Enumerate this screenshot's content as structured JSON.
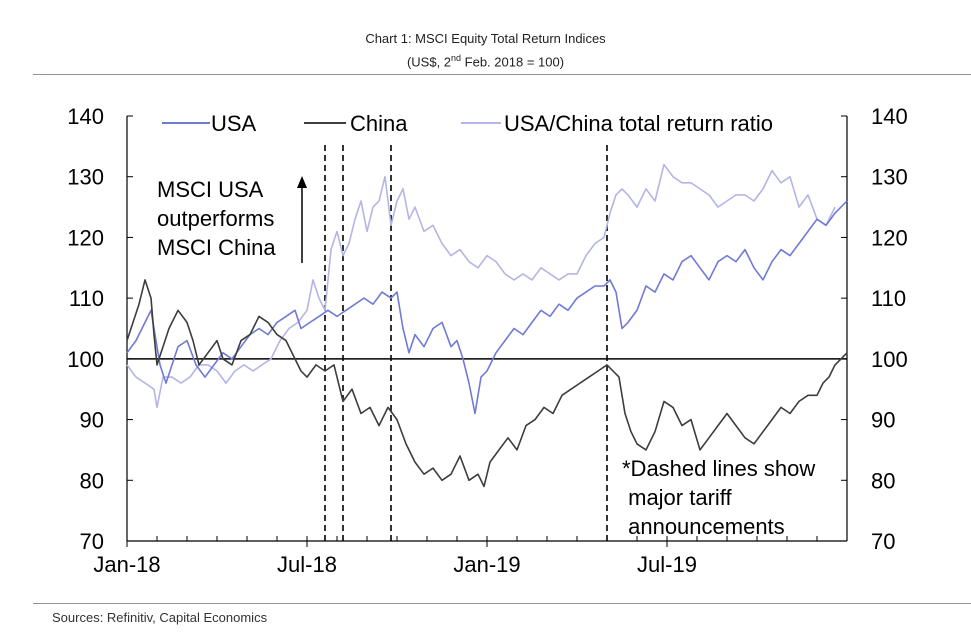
{
  "header": {
    "title": "Chart 1: MSCI Equity Total Return Indices",
    "subtitle_pre": "(US$, 2",
    "subtitle_sup": "nd",
    "subtitle_post": " Feb. 2018 = 100)"
  },
  "footer": {
    "source": "Sources: Refinitiv, Capital Economics"
  },
  "chart_data": {
    "type": "line",
    "title": "Chart 1: MSCI Equity Total Return Indices",
    "subtitle": "(US$, 2nd Feb. 2018 = 100)",
    "x_type": "month_index",
    "x_note": "x = months since 1 Jan 2018 (0 = Jan-18, 24 = Jan-20)",
    "xlim": [
      0,
      24
    ],
    "x_ticks": [
      {
        "x": 0,
        "label": "Jan-18"
      },
      {
        "x": 6,
        "label": "Jul-18"
      },
      {
        "x": 12,
        "label": "Jan-19"
      },
      {
        "x": 18,
        "label": "Jul-19"
      }
    ],
    "ylim": [
      70,
      140
    ],
    "y_ticks": [
      70,
      80,
      90,
      100,
      110,
      120,
      130,
      140
    ],
    "y2lim": [
      70,
      140
    ],
    "y2_ticks": [
      70,
      80,
      90,
      100,
      110,
      120,
      130,
      140
    ],
    "reference_line": 100,
    "grid": false,
    "legend_position": "top",
    "series": [
      {
        "name": "USA",
        "color": "#6f7ad6",
        "points": [
          [
            0,
            101
          ],
          [
            0.3,
            103
          ],
          [
            0.6,
            106
          ],
          [
            0.8,
            108
          ],
          [
            1.0,
            102
          ],
          [
            1.1,
            99
          ],
          [
            1.3,
            96
          ],
          [
            1.5,
            99
          ],
          [
            1.7,
            102
          ],
          [
            2.0,
            103
          ],
          [
            2.3,
            99
          ],
          [
            2.6,
            97
          ],
          [
            2.9,
            99
          ],
          [
            3.2,
            101
          ],
          [
            3.5,
            100
          ],
          [
            3.8,
            102
          ],
          [
            4.1,
            104
          ],
          [
            4.4,
            105
          ],
          [
            4.7,
            104
          ],
          [
            5.0,
            106
          ],
          [
            5.3,
            107
          ],
          [
            5.6,
            108
          ],
          [
            5.8,
            105
          ],
          [
            6.1,
            106
          ],
          [
            6.4,
            107
          ],
          [
            6.7,
            108
          ],
          [
            7.0,
            107
          ],
          [
            7.3,
            108
          ],
          [
            7.6,
            109
          ],
          [
            7.9,
            110
          ],
          [
            8.2,
            109
          ],
          [
            8.5,
            111
          ],
          [
            8.8,
            110
          ],
          [
            9.0,
            111
          ],
          [
            9.2,
            105
          ],
          [
            9.4,
            101
          ],
          [
            9.6,
            104
          ],
          [
            9.9,
            102
          ],
          [
            10.2,
            105
          ],
          [
            10.5,
            106
          ],
          [
            10.8,
            102
          ],
          [
            11.0,
            103
          ],
          [
            11.2,
            100
          ],
          [
            11.4,
            96
          ],
          [
            11.6,
            91
          ],
          [
            11.8,
            97
          ],
          [
            12.0,
            98
          ],
          [
            12.3,
            101
          ],
          [
            12.6,
            103
          ],
          [
            12.9,
            105
          ],
          [
            13.2,
            104
          ],
          [
            13.5,
            106
          ],
          [
            13.8,
            108
          ],
          [
            14.1,
            107
          ],
          [
            14.4,
            109
          ],
          [
            14.7,
            108
          ],
          [
            15.0,
            110
          ],
          [
            15.3,
            111
          ],
          [
            15.6,
            112
          ],
          [
            15.9,
            112
          ],
          [
            16.1,
            113
          ],
          [
            16.3,
            111
          ],
          [
            16.5,
            105
          ],
          [
            16.7,
            106
          ],
          [
            17.0,
            108
          ],
          [
            17.3,
            112
          ],
          [
            17.6,
            111
          ],
          [
            17.9,
            114
          ],
          [
            18.2,
            113
          ],
          [
            18.5,
            116
          ],
          [
            18.8,
            117
          ],
          [
            19.1,
            115
          ],
          [
            19.4,
            113
          ],
          [
            19.7,
            116
          ],
          [
            20.0,
            117
          ],
          [
            20.3,
            116
          ],
          [
            20.6,
            118
          ],
          [
            20.9,
            115
          ],
          [
            21.2,
            113
          ],
          [
            21.5,
            116
          ],
          [
            21.8,
            118
          ],
          [
            22.1,
            117
          ],
          [
            22.4,
            119
          ],
          [
            22.7,
            121
          ],
          [
            23.0,
            123
          ],
          [
            23.3,
            122
          ],
          [
            23.6,
            124
          ],
          [
            23.8,
            125
          ],
          [
            24.0,
            126
          ]
        ]
      },
      {
        "name": "China",
        "color": "#3d3d3d",
        "points": [
          [
            0,
            103
          ],
          [
            0.2,
            106
          ],
          [
            0.4,
            109
          ],
          [
            0.6,
            113
          ],
          [
            0.8,
            110
          ],
          [
            0.9,
            104
          ],
          [
            1.0,
            99
          ],
          [
            1.2,
            102
          ],
          [
            1.4,
            105
          ],
          [
            1.7,
            108
          ],
          [
            2.0,
            106
          ],
          [
            2.2,
            103
          ],
          [
            2.4,
            99
          ],
          [
            2.7,
            101
          ],
          [
            3.0,
            103
          ],
          [
            3.2,
            100
          ],
          [
            3.5,
            99
          ],
          [
            3.8,
            103
          ],
          [
            4.1,
            104
          ],
          [
            4.4,
            107
          ],
          [
            4.7,
            106
          ],
          [
            5.0,
            104
          ],
          [
            5.3,
            103
          ],
          [
            5.6,
            100
          ],
          [
            5.8,
            98
          ],
          [
            6.0,
            97
          ],
          [
            6.3,
            99
          ],
          [
            6.6,
            98
          ],
          [
            6.9,
            99
          ],
          [
            7.2,
            93
          ],
          [
            7.5,
            95
          ],
          [
            7.8,
            91
          ],
          [
            8.1,
            92
          ],
          [
            8.4,
            89
          ],
          [
            8.7,
            92
          ],
          [
            9.0,
            90
          ],
          [
            9.3,
            86
          ],
          [
            9.6,
            83
          ],
          [
            9.9,
            81
          ],
          [
            10.2,
            82
          ],
          [
            10.5,
            80
          ],
          [
            10.8,
            81
          ],
          [
            11.1,
            84
          ],
          [
            11.4,
            80
          ],
          [
            11.7,
            81
          ],
          [
            11.9,
            79
          ],
          [
            12.1,
            83
          ],
          [
            12.4,
            85
          ],
          [
            12.7,
            87
          ],
          [
            13.0,
            85
          ],
          [
            13.3,
            89
          ],
          [
            13.6,
            90
          ],
          [
            13.9,
            92
          ],
          [
            14.2,
            91
          ],
          [
            14.5,
            94
          ],
          [
            14.8,
            95
          ],
          [
            15.1,
            96
          ],
          [
            15.4,
            97
          ],
          [
            15.7,
            98
          ],
          [
            16.0,
            99
          ],
          [
            16.2,
            98
          ],
          [
            16.4,
            97
          ],
          [
            16.6,
            91
          ],
          [
            16.8,
            88
          ],
          [
            17.0,
            86
          ],
          [
            17.3,
            85
          ],
          [
            17.6,
            88
          ],
          [
            17.9,
            93
          ],
          [
            18.2,
            92
          ],
          [
            18.5,
            89
          ],
          [
            18.8,
            90
          ],
          [
            19.1,
            85
          ],
          [
            19.4,
            87
          ],
          [
            19.7,
            89
          ],
          [
            20.0,
            91
          ],
          [
            20.3,
            89
          ],
          [
            20.6,
            87
          ],
          [
            20.9,
            86
          ],
          [
            21.2,
            88
          ],
          [
            21.5,
            90
          ],
          [
            21.8,
            92
          ],
          [
            22.1,
            91
          ],
          [
            22.4,
            93
          ],
          [
            22.7,
            94
          ],
          [
            23.0,
            94
          ],
          [
            23.2,
            96
          ],
          [
            23.4,
            97
          ],
          [
            23.6,
            99
          ],
          [
            23.8,
            100
          ],
          [
            24.0,
            101
          ]
        ]
      },
      {
        "name": "USA/China total return ratio",
        "color": "#b3b5e6",
        "points": [
          [
            0,
            99
          ],
          [
            0.3,
            97
          ],
          [
            0.6,
            96
          ],
          [
            0.9,
            95
          ],
          [
            1.0,
            92
          ],
          [
            1.2,
            97
          ],
          [
            1.5,
            97
          ],
          [
            1.8,
            96
          ],
          [
            2.1,
            97
          ],
          [
            2.4,
            99
          ],
          [
            2.7,
            99
          ],
          [
            3.0,
            98
          ],
          [
            3.3,
            96
          ],
          [
            3.6,
            98
          ],
          [
            3.9,
            99
          ],
          [
            4.2,
            98
          ],
          [
            4.5,
            99
          ],
          [
            4.8,
            100
          ],
          [
            5.1,
            103
          ],
          [
            5.4,
            105
          ],
          [
            5.7,
            106
          ],
          [
            6.0,
            108
          ],
          [
            6.2,
            113
          ],
          [
            6.4,
            110
          ],
          [
            6.6,
            108
          ],
          [
            6.8,
            118
          ],
          [
            7.0,
            121
          ],
          [
            7.2,
            117
          ],
          [
            7.4,
            119
          ],
          [
            7.6,
            123
          ],
          [
            7.8,
            126
          ],
          [
            8.0,
            121
          ],
          [
            8.2,
            125
          ],
          [
            8.4,
            126
          ],
          [
            8.6,
            130
          ],
          [
            8.8,
            122
          ],
          [
            9.0,
            126
          ],
          [
            9.2,
            128
          ],
          [
            9.4,
            123
          ],
          [
            9.6,
            125
          ],
          [
            9.9,
            121
          ],
          [
            10.2,
            122
          ],
          [
            10.5,
            119
          ],
          [
            10.8,
            117
          ],
          [
            11.1,
            118
          ],
          [
            11.4,
            116
          ],
          [
            11.7,
            115
          ],
          [
            12.0,
            117
          ],
          [
            12.3,
            116
          ],
          [
            12.6,
            114
          ],
          [
            12.9,
            113
          ],
          [
            13.2,
            114
          ],
          [
            13.5,
            113
          ],
          [
            13.8,
            115
          ],
          [
            14.1,
            114
          ],
          [
            14.4,
            113
          ],
          [
            14.7,
            114
          ],
          [
            15.0,
            114
          ],
          [
            15.3,
            117
          ],
          [
            15.6,
            119
          ],
          [
            15.9,
            120
          ],
          [
            16.1,
            124
          ],
          [
            16.3,
            127
          ],
          [
            16.5,
            128
          ],
          [
            16.7,
            127
          ],
          [
            17.0,
            125
          ],
          [
            17.3,
            128
          ],
          [
            17.6,
            126
          ],
          [
            17.9,
            132
          ],
          [
            18.2,
            130
          ],
          [
            18.5,
            129
          ],
          [
            18.8,
            129
          ],
          [
            19.1,
            128
          ],
          [
            19.4,
            127
          ],
          [
            19.7,
            125
          ],
          [
            20.0,
            126
          ],
          [
            20.3,
            127
          ],
          [
            20.6,
            127
          ],
          [
            20.9,
            126
          ],
          [
            21.2,
            128
          ],
          [
            21.5,
            131
          ],
          [
            21.8,
            129
          ],
          [
            22.1,
            130
          ],
          [
            22.4,
            125
          ],
          [
            22.7,
            127
          ],
          [
            23.0,
            123
          ],
          [
            23.3,
            122
          ],
          [
            23.6,
            125
          ]
        ]
      }
    ],
    "vlines": [
      6.6,
      7.2,
      8.8,
      16.0
    ],
    "vline_style": "dashed",
    "annotations": [
      {
        "id": "outperforms",
        "lines": [
          "MSCI USA",
          "outperforms",
          "MSCI China"
        ],
        "arrow": "up"
      },
      {
        "id": "tariff-note",
        "lines": [
          "*Dashed lines show",
          " major tariff",
          " announcements"
        ]
      }
    ]
  }
}
